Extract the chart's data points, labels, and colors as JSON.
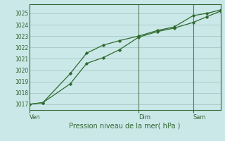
{
  "background_color": "#cbe8e8",
  "grid_color": "#aacccc",
  "line_color": "#2d6a2d",
  "marker_color": "#2d6a2d",
  "xlabel": "Pression niveau de la mer( hPa )",
  "xlabel_color": "#336633",
  "tick_color": "#336633",
  "ylim": [
    1016.5,
    1025.8
  ],
  "yticks": [
    1017,
    1018,
    1019,
    1020,
    1021,
    1022,
    1023,
    1024,
    1025
  ],
  "xlim": [
    0.0,
    3.5
  ],
  "xtick_positions": [
    0.0,
    2.0,
    3.0
  ],
  "xtick_labels": [
    "Ven",
    "Dim",
    "Sam"
  ],
  "line1_x": [
    0.0,
    0.25,
    0.75,
    1.05,
    1.35,
    1.65,
    2.0,
    2.35,
    2.65,
    3.0,
    3.25,
    3.5
  ],
  "line1_y": [
    1017.0,
    1017.15,
    1019.7,
    1021.5,
    1022.2,
    1022.6,
    1023.0,
    1023.5,
    1023.8,
    1024.8,
    1025.0,
    1025.3
  ],
  "line2_x": [
    0.0,
    0.25,
    0.75,
    1.05,
    1.35,
    1.65,
    2.0,
    2.35,
    2.65,
    3.0,
    3.25,
    3.5
  ],
  "line2_y": [
    1017.0,
    1017.15,
    1018.8,
    1020.6,
    1021.1,
    1021.8,
    1022.9,
    1023.4,
    1023.7,
    1024.2,
    1024.7,
    1025.2
  ],
  "vline_positions": [
    2.0,
    3.0
  ],
  "vline_color": "#557755",
  "spine_color": "#336633",
  "figsize": [
    3.2,
    2.0
  ],
  "dpi": 100
}
